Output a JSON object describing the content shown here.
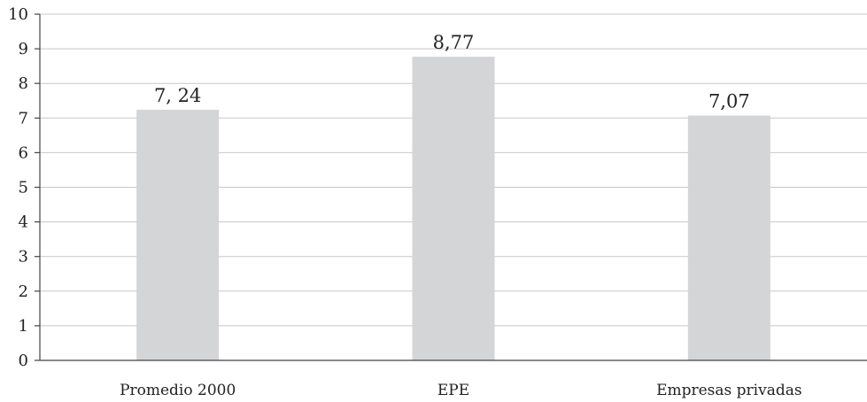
{
  "chart_data": {
    "type": "bar",
    "categories": [
      "Promedio 2000",
      "EPE",
      "Empresas privadas"
    ],
    "values": [
      7.24,
      8.77,
      7.07
    ],
    "data_labels": [
      "7, 24",
      "8,77",
      "7,07"
    ],
    "yticks": [
      "0",
      "1",
      "2",
      "3",
      "4",
      "5",
      "6",
      "7",
      "8",
      "9",
      "10"
    ],
    "ylim": [
      0,
      10
    ],
    "grid": true,
    "bar_color": "#d4d5d7",
    "title": "",
    "xlabel": "",
    "ylabel": ""
  }
}
